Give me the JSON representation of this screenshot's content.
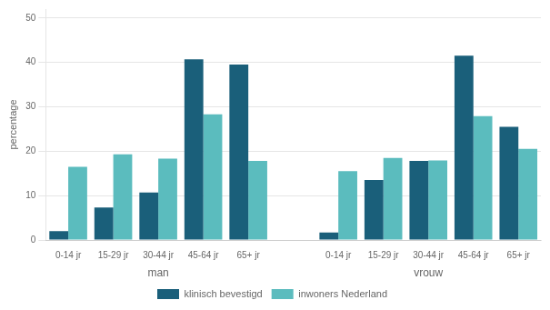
{
  "chart_data": {
    "type": "bar",
    "categories": [
      "0-14 jr",
      "15-29 jr",
      "30-44 jr",
      "45-64 jr",
      "65+ jr",
      "0-14 jr",
      "15-29 jr",
      "30-44 jr",
      "45-64 jr",
      "65+ jr"
    ],
    "groups": [
      "man",
      "vrouw"
    ],
    "series": [
      {
        "name": "klinisch bevestigd",
        "color": "#1a5f7a",
        "values": [
          2,
          7.3,
          10.7,
          40.7,
          39.5,
          1.7,
          13.5,
          17.8,
          41.5,
          25.5
        ]
      },
      {
        "name": "inwoners Nederland",
        "color": "#5bbcbe",
        "values": [
          16.5,
          19.3,
          18.3,
          28.3,
          17.8,
          15.5,
          18.5,
          17.9,
          27.9,
          20.5
        ]
      }
    ],
    "ylabel": "percentage",
    "ylim": [
      0,
      52
    ],
    "yticks": [
      0,
      10,
      20,
      30,
      40,
      50
    ],
    "grid": true,
    "legend": "bottom"
  }
}
